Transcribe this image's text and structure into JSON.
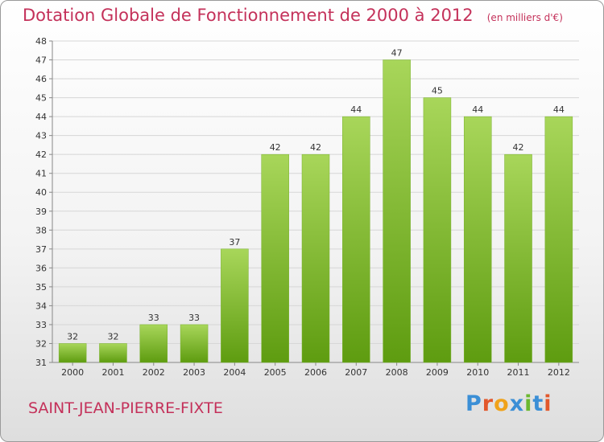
{
  "chart_data": {
    "type": "bar",
    "title": "Dotation Globale de Fonctionnement de 2000 à 2012",
    "subtitle": "(en milliers d'€)",
    "categories": [
      "2000",
      "2001",
      "2002",
      "2003",
      "2004",
      "2005",
      "2006",
      "2007",
      "2008",
      "2009",
      "2010",
      "2011",
      "2012"
    ],
    "values": [
      32,
      32,
      33,
      33,
      37,
      42,
      42,
      44,
      47,
      45,
      44,
      42,
      44
    ],
    "ylim": [
      31,
      48
    ],
    "yticks": [
      31,
      32,
      33,
      34,
      35,
      36,
      37,
      38,
      39,
      40,
      41,
      42,
      43,
      44,
      45,
      46,
      47,
      48
    ],
    "xlabel": "",
    "ylabel": "",
    "grid": true,
    "legend": "none"
  },
  "footer": {
    "commune": "SAINT-JEAN-PIERRE-FIXTE",
    "logo": "Proxiti"
  },
  "colors": {
    "title": "#c4315a",
    "bar_light": "#a8d65a",
    "bar_dark": "#5e9c10",
    "grid": "#d6d6d6",
    "axis": "#888888"
  }
}
